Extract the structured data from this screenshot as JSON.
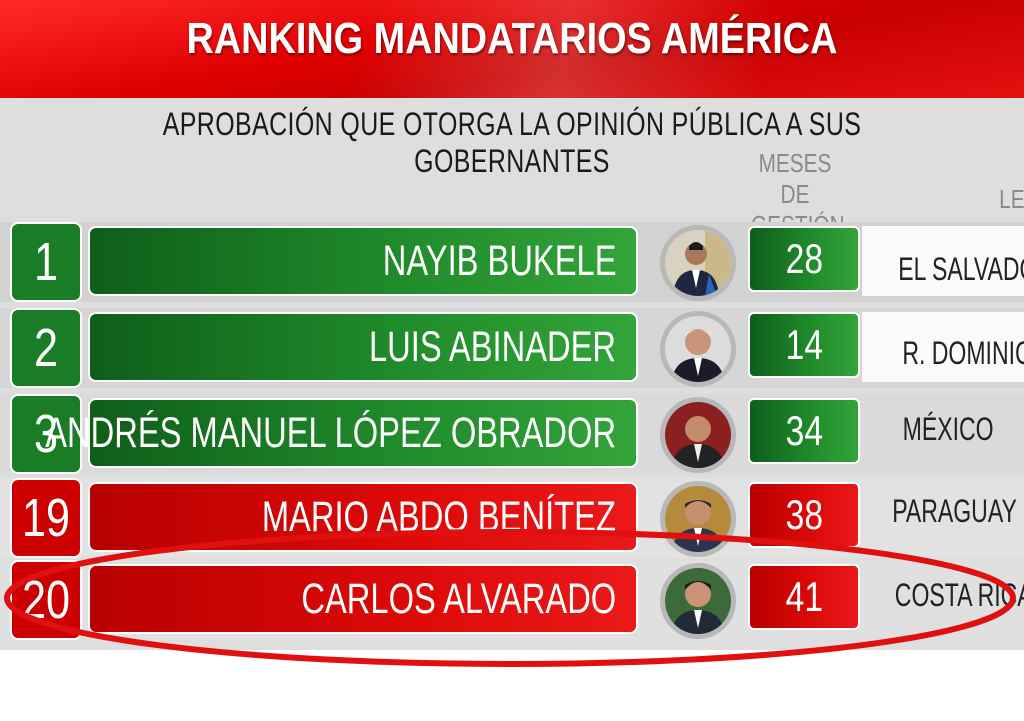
{
  "header": {
    "title": "RANKING MANDATARIOS AMÉRICA",
    "subtitle": "APROBACIÓN QUE OTORGA LA OPINIÓN PÚBLICA A SUS GOBERNANTES"
  },
  "columns": {
    "months_line1": "MESES DE",
    "months_line2": "GESTIÓN",
    "partial_header": "LE"
  },
  "rows": [
    {
      "rank": "1",
      "name": "NAYIB BUKELE",
      "months": "28",
      "country": "EL SALVADOR",
      "status": "green"
    },
    {
      "rank": "2",
      "name": "LUIS ABINADER",
      "months": "14",
      "country": "R. DOMINICANA",
      "status": "green"
    },
    {
      "rank": "3",
      "name": "ANDRÉS MANUEL LÓPEZ OBRADOR",
      "months": "34",
      "country": "MÉXICO",
      "status": "green"
    },
    {
      "rank": "19",
      "name": "MARIO ABDO BENÍTEZ",
      "months": "38",
      "country": "PARAGUAY",
      "status": "red"
    },
    {
      "rank": "20",
      "name": "CARLOS ALVARADO",
      "months": "41",
      "country": "COSTA RICA",
      "status": "red"
    }
  ],
  "colors": {
    "banner_red": "#e00000",
    "green": "#1f8a2a",
    "red": "#dd0a0a",
    "highlight_ellipse": "#e01010"
  },
  "icons": [
    "portrait-bukele-icon",
    "portrait-abinader-icon",
    "portrait-amlo-icon",
    "portrait-abdo-icon",
    "portrait-alvarado-icon"
  ]
}
